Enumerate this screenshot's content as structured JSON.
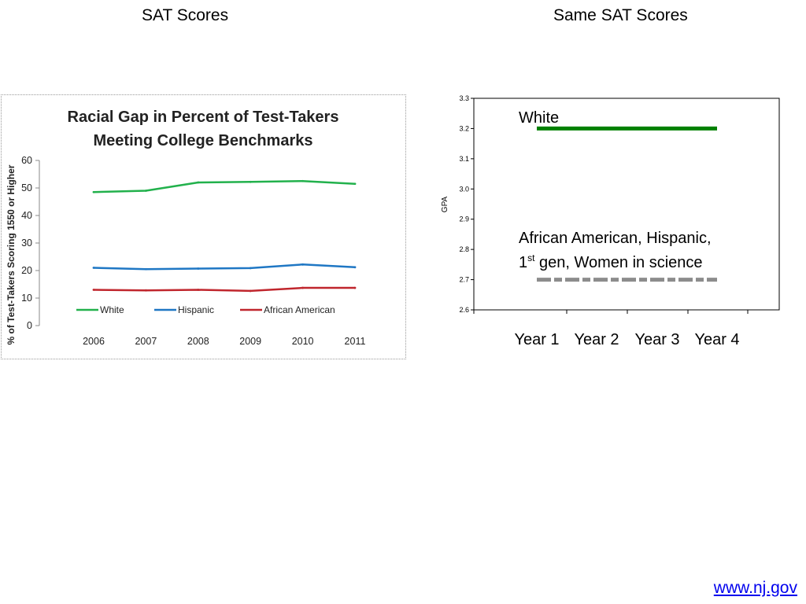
{
  "slide": {
    "left_heading": "SAT Scores",
    "right_heading": "Same SAT Scores",
    "footer_link": "www.nj.gov"
  },
  "chart_data": [
    {
      "type": "line",
      "title_lines": [
        "Racial Gap in Percent of Test-Takers",
        "Meeting College Benchmarks"
      ],
      "ylabel": "% of Test-Takers Scoring 1550 or Higher",
      "xlabel": "",
      "ylim": [
        0,
        60
      ],
      "yticks": [
        0,
        10,
        20,
        30,
        40,
        50,
        60
      ],
      "x": [
        "2006",
        "2007",
        "2008",
        "2009",
        "2010",
        "2011"
      ],
      "series": [
        {
          "name": "White",
          "color": "#22b14c",
          "values": [
            48.5,
            49.0,
            52.0,
            52.2,
            52.5,
            51.5
          ]
        },
        {
          "name": "Hispanic",
          "color": "#1f77c4",
          "values": [
            21.0,
            20.5,
            20.7,
            20.9,
            22.2,
            21.2
          ]
        },
        {
          "name": "African American",
          "color": "#c0262d",
          "values": [
            13.0,
            12.8,
            13.0,
            12.6,
            13.7,
            13.7
          ]
        }
      ],
      "legend": "bottom",
      "grid": false
    },
    {
      "type": "line",
      "ylabel": "GPA",
      "xlabel": "",
      "ylim": [
        2.6,
        3.3
      ],
      "yticks": [
        "2.6",
        "2.7",
        "2.8",
        "2.9",
        "3.0",
        "3.1",
        "3.2",
        "3.3"
      ],
      "categories": [
        "Year 1",
        "Year 2",
        "Year 3",
        "Year 4"
      ],
      "series": [
        {
          "label": "White",
          "color": "#008000",
          "style": "solid",
          "values": [
            3.2,
            3.2,
            3.2,
            3.2
          ]
        },
        {
          "label_line1": "African American, Hispanic,",
          "label_line2_pre": "1",
          "label_line2_sup": "st",
          "label_line2_post": " gen, Women in science",
          "color": "#8c8c8c",
          "style": "dashed",
          "values": [
            2.7,
            2.7,
            2.7,
            2.7
          ]
        }
      ],
      "legend": "none",
      "grid": false
    }
  ]
}
